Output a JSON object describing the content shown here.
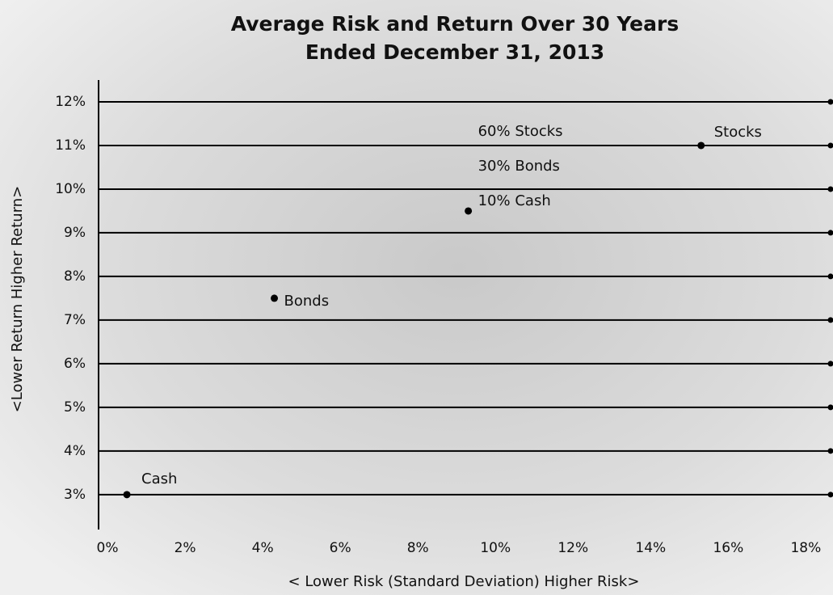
{
  "chart_data": {
    "type": "scatter",
    "title": [
      "Average Risk and Return Over 30 Years",
      "Ended December 31, 2013"
    ],
    "x_label": "< Lower Risk (Standard Deviation) Higher Risk>",
    "y_label": "<Lower Return Higher Return>",
    "x": [
      0.5,
      4.3,
      9.3,
      15.3
    ],
    "values": [
      3,
      7.5,
      9.5,
      11
    ],
    "point_labels": [
      [
        "Cash"
      ],
      [
        "Bonds"
      ],
      [
        "60% Stocks",
        "30% Bonds",
        "10% Cash"
      ],
      [
        "Stocks"
      ]
    ],
    "color": "#000000",
    "xlim": [
      -0.23,
      18.7
    ],
    "ylim": [
      2.2,
      12.5
    ],
    "xticks": [
      {
        "value": 0,
        "label": "0%"
      },
      {
        "value": 2,
        "label": "2%"
      },
      {
        "value": 4,
        "label": "4%"
      },
      {
        "value": 6,
        "label": "6%"
      },
      {
        "value": 8,
        "label": "8%"
      },
      {
        "value": 10,
        "label": "10%"
      },
      {
        "value": 12,
        "label": "12%"
      },
      {
        "value": 14,
        "label": "14%"
      },
      {
        "value": 16,
        "label": "16%"
      },
      {
        "value": 18,
        "label": "18%"
      }
    ],
    "yticks": [
      {
        "value": 3,
        "label": "3%"
      },
      {
        "value": 4,
        "label": "4%"
      },
      {
        "value": 5,
        "label": "5%"
      },
      {
        "value": 6,
        "label": "6%"
      },
      {
        "value": 7,
        "label": "7%"
      },
      {
        "value": 8,
        "label": "8%"
      },
      {
        "value": 9,
        "label": "9%"
      },
      {
        "value": 10,
        "label": "10%"
      },
      {
        "value": 11,
        "label": "11%"
      },
      {
        "value": 12,
        "label": "12%"
      }
    ],
    "grid": true
  }
}
